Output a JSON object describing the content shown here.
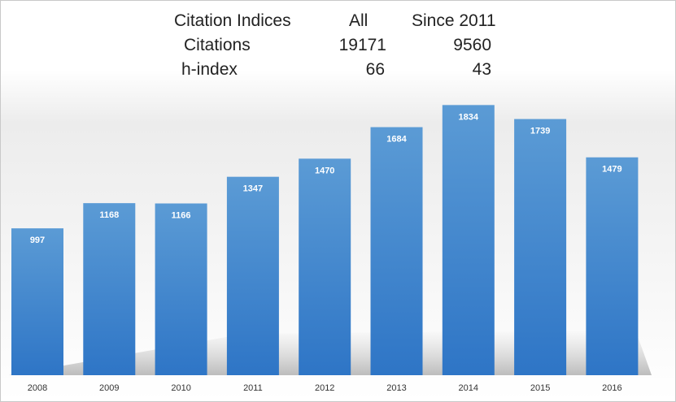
{
  "stats": {
    "headers": [
      "Citation Indices",
      "All",
      "Since 2011"
    ],
    "rows": [
      {
        "label": "Citations",
        "all": "19171",
        "since": "9560"
      },
      {
        "label": "h-index",
        "all": "66",
        "since": "43"
      }
    ]
  },
  "chart_data": {
    "type": "bar",
    "title": "",
    "xlabel": "",
    "ylabel": "",
    "categories": [
      "2008",
      "2009",
      "2010",
      "2011",
      "2012",
      "2013",
      "2014",
      "2015",
      "2016"
    ],
    "values": [
      997,
      1168,
      1166,
      1347,
      1470,
      1684,
      1834,
      1739,
      1479
    ],
    "ylim": [
      0,
      2095
    ],
    "grid": false,
    "legend": "none",
    "bar_color_top": "#5b9bd5",
    "bar_color_bottom": "#2e75c6"
  }
}
